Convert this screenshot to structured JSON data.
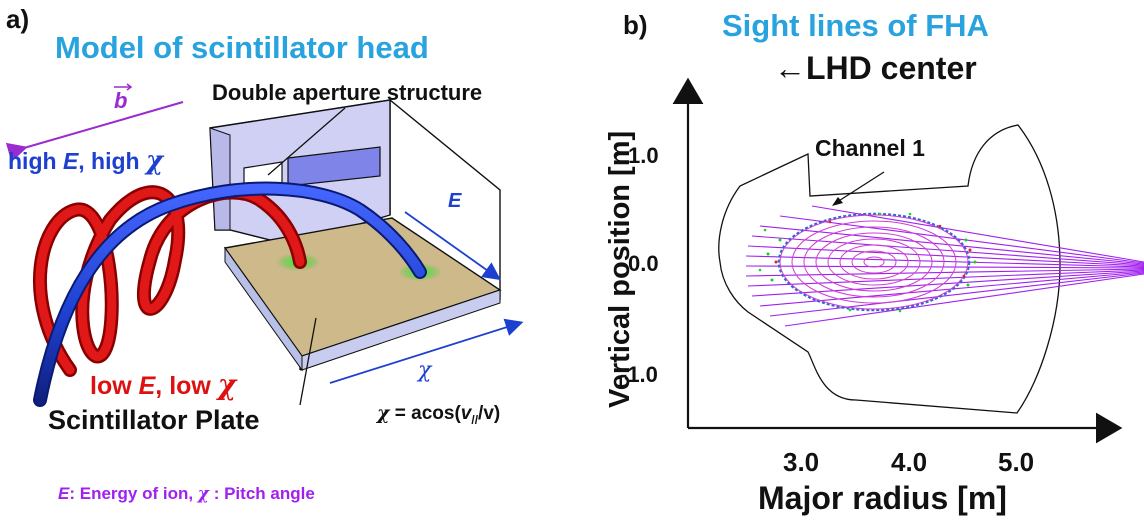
{
  "panel_a": {
    "label": "a)",
    "title": "Model of scintillator head",
    "b_vector": "b",
    "double_aperture": "Double aperture structure",
    "high": {
      "p1": "high ",
      "e": "E",
      "p2": ", high ",
      "chi": "χ"
    },
    "low": {
      "p1": "low ",
      "e": "E",
      "p2": ", low ",
      "chi": "χ"
    },
    "e_arrow": "E",
    "chi_arrow": "χ",
    "chi_formula": {
      "chi": "χ",
      "eq": " = acos(",
      "v": "v",
      "sub": "//",
      "rest": "/v)"
    },
    "scint_plate": "Scintillator Plate",
    "legend": {
      "e": "E",
      "p1": ": Energy of ion, ",
      "chi": "χ",
      "p2": " : Pitch angle"
    }
  },
  "panel_b": {
    "label": "b)",
    "title": "Sight lines of FHA",
    "lhd_center": "←LHD center",
    "channel_label": "Channel 1",
    "xlabel": "Major radius [m]",
    "ylabel": "Vertical position [m]",
    "xticks": [
      "3.0",
      "4.0",
      "5.0"
    ],
    "yticks": [
      "1.0",
      "0.0",
      "-1.0"
    ]
  },
  "colors": {
    "title_cyan": "#29a3dd",
    "purple": "#a020f0",
    "blue": "#1e40d0",
    "red": "#dd1111",
    "green": "#22cc22",
    "plate": "#cdb98a"
  }
}
